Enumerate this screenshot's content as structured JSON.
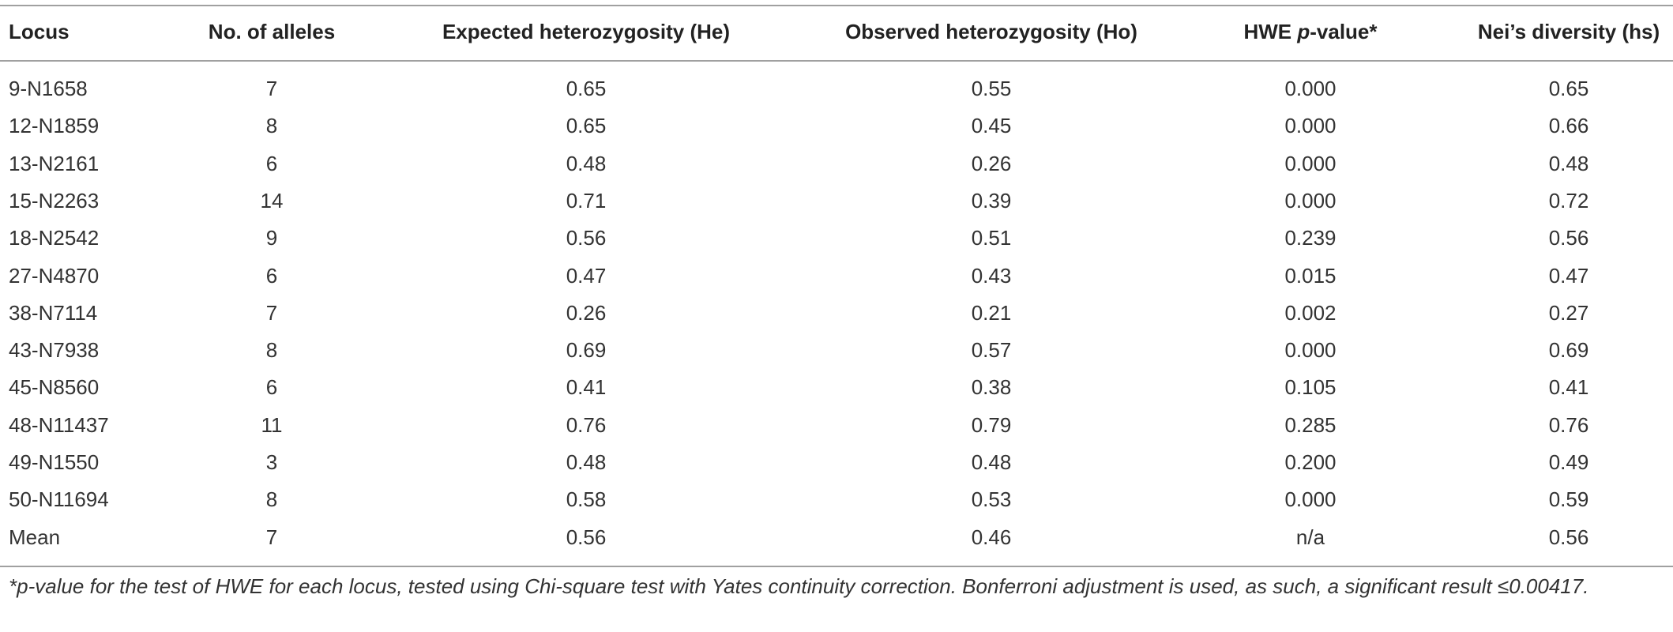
{
  "table": {
    "header": [
      "Locus",
      "No. of alleles",
      "Expected heterozygosity (He)",
      "Observed heterozygosity (Ho)",
      [
        "HWE ",
        "p",
        "-value*"
      ],
      "Nei’s diversity (hs)"
    ],
    "rows": [
      [
        "9-N1658",
        "7",
        "0.65",
        "0.55",
        "0.000",
        "0.65"
      ],
      [
        "12-N1859",
        "8",
        "0.65",
        "0.45",
        "0.000",
        "0.66"
      ],
      [
        "13-N2161",
        "6",
        "0.48",
        "0.26",
        "0.000",
        "0.48"
      ],
      [
        "15-N2263",
        "14",
        "0.71",
        "0.39",
        "0.000",
        "0.72"
      ],
      [
        "18-N2542",
        "9",
        "0.56",
        "0.51",
        "0.239",
        "0.56"
      ],
      [
        "27-N4870",
        "6",
        "0.47",
        "0.43",
        "0.015",
        "0.47"
      ],
      [
        "38-N7114",
        "7",
        "0.26",
        "0.21",
        "0.002",
        "0.27"
      ],
      [
        "43-N7938",
        "8",
        "0.69",
        "0.57",
        "0.000",
        "0.69"
      ],
      [
        "45-N8560",
        "6",
        "0.41",
        "0.38",
        "0.105",
        "0.41"
      ],
      [
        "48-N11437",
        "11",
        "0.76",
        "0.79",
        "0.285",
        "0.76"
      ],
      [
        "49-N1550",
        "3",
        "0.48",
        "0.48",
        "0.200",
        "0.49"
      ],
      [
        "50-N11694",
        "8",
        "0.58",
        "0.53",
        "0.000",
        "0.59"
      ],
      [
        "Mean",
        "7",
        "0.56",
        "0.46",
        "n/a",
        "0.56"
      ]
    ],
    "footnote": "*p-value for the test of HWE for each locus, tested using Chi-square test with Yates continuity correction. Bonferroni adjustment is used, as such, a significant result ≤0.00417."
  }
}
